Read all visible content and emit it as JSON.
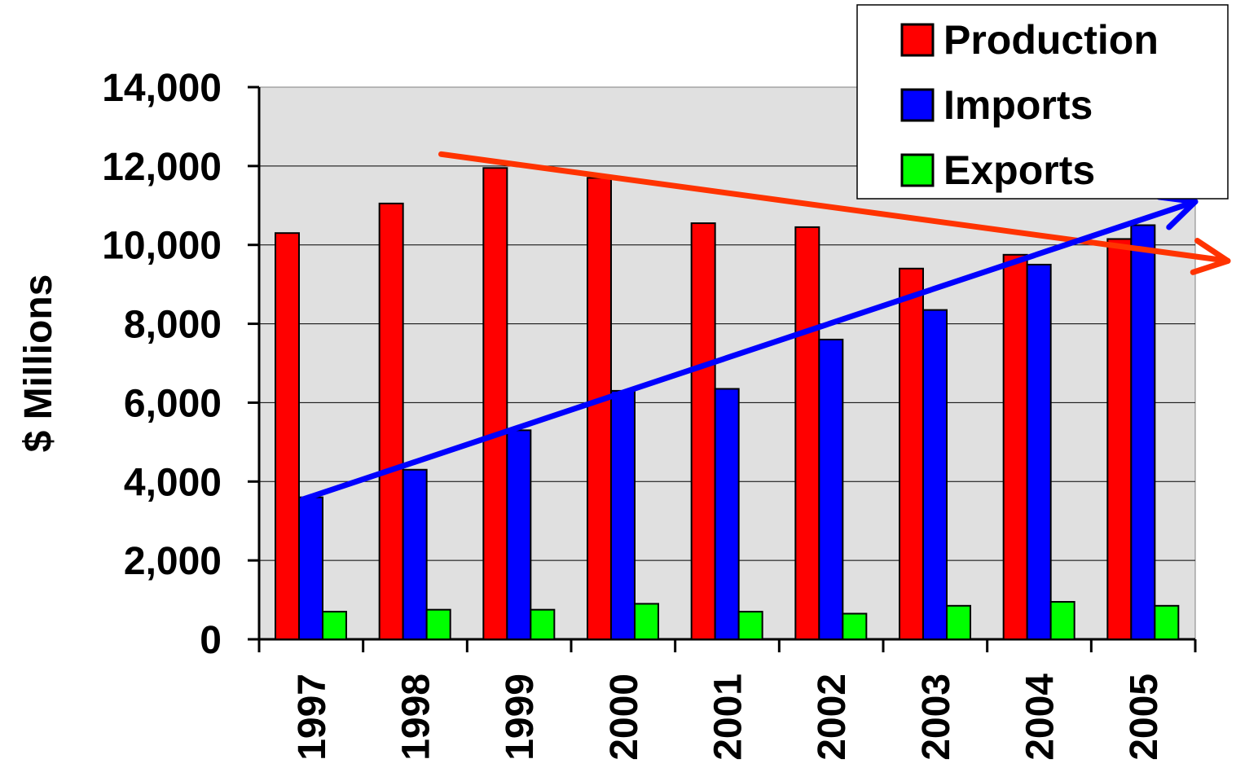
{
  "chart_data": {
    "type": "bar",
    "title": "",
    "xlabel": "",
    "ylabel": "$ Millions",
    "ylim": [
      0,
      14000
    ],
    "yticks": [
      0,
      2000,
      4000,
      6000,
      8000,
      10000,
      12000,
      14000
    ],
    "ytick_labels": [
      "0",
      "2,000",
      "4,000",
      "6,000",
      "8,000",
      "10,000",
      "12,000",
      "14,000"
    ],
    "categories": [
      "1997",
      "1998",
      "1999",
      "2000",
      "2001",
      "2002",
      "2003",
      "2004",
      "2005"
    ],
    "series": [
      {
        "name": "Production",
        "color": "#ff0000",
        "values": [
          10300,
          11050,
          11950,
          11700,
          10550,
          10450,
          9400,
          9750,
          10150
        ]
      },
      {
        "name": "Imports",
        "color": "#0000ff",
        "values": [
          3600,
          4300,
          5300,
          6300,
          6350,
          7600,
          8350,
          9500,
          10500
        ]
      },
      {
        "name": "Exports",
        "color": "#00ff00",
        "values": [
          700,
          750,
          750,
          900,
          700,
          650,
          850,
          950,
          850
        ]
      }
    ],
    "grid": "horizontal",
    "plot_background": "#e0e0e0",
    "legend_position": "top-right",
    "trend_arrows": [
      {
        "series": "Production",
        "color": "#ff3300",
        "from": [
          "1998",
          12300
        ],
        "to": [
          "2005",
          9800
        ]
      },
      {
        "series": "Imports",
        "color": "#0000ff",
        "from": [
          "1997",
          3550
        ],
        "to": [
          "2005",
          11200
        ]
      }
    ]
  }
}
